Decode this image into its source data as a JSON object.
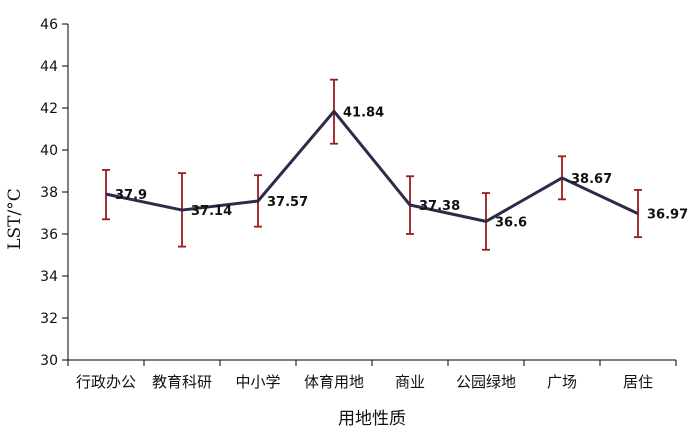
{
  "chart_data": {
    "type": "line",
    "title": "",
    "xlabel": "用地性质",
    "ylabel": "LST/°C",
    "ylim": [
      30,
      46
    ],
    "yticks": [
      30,
      32,
      34,
      36,
      38,
      40,
      42,
      44,
      46
    ],
    "categories": [
      "行政办公",
      "教育科研",
      "中小学",
      "体育用地",
      "商业",
      "公园绿地",
      "广场",
      "居住"
    ],
    "series": [
      {
        "values": [
          37.9,
          37.14,
          37.57,
          41.84,
          37.38,
          36.6,
          38.67,
          36.97
        ],
        "labels": [
          "37.9",
          "37.14",
          "37.57",
          "41.84",
          "37.38",
          "36.6",
          "38.67",
          "36.97"
        ],
        "error_low": [
          36.7,
          35.4,
          36.35,
          40.3,
          36.0,
          35.25,
          37.65,
          35.85
        ],
        "error_high": [
          39.05,
          38.9,
          38.8,
          43.35,
          38.75,
          37.95,
          39.7,
          38.1
        ]
      }
    ],
    "grid": false,
    "legend": "none",
    "colors": {
      "line": "#2e2a48",
      "error_bar": "#9b1b1b",
      "axis": "#000000"
    }
  }
}
